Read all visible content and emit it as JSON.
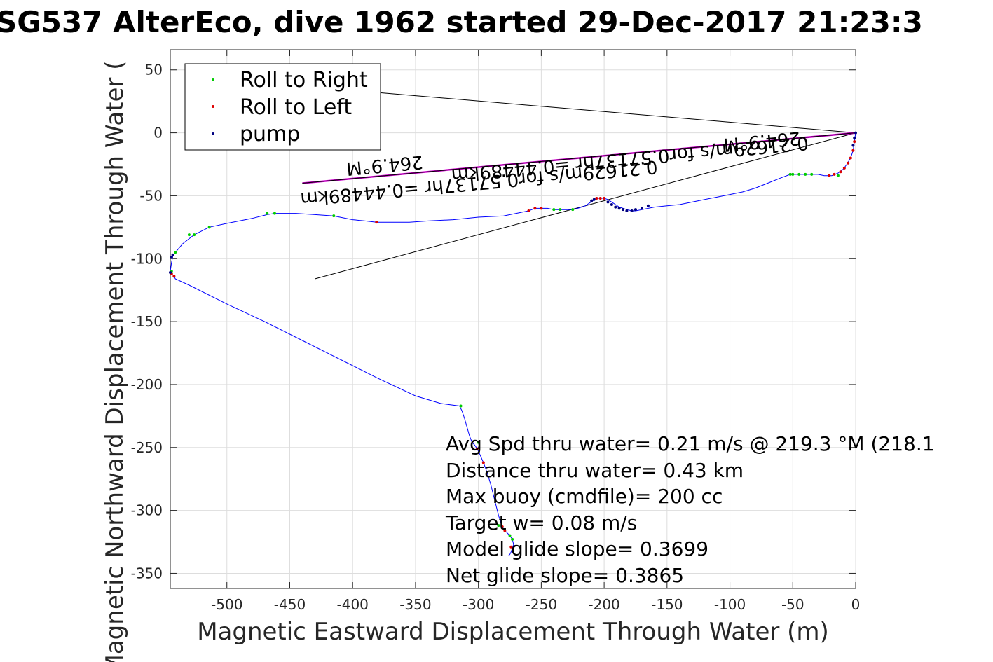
{
  "chart_data": {
    "type": "line",
    "title": "SG537 AlterEco, dive 1962 started 29-Dec-2017 21:23:3",
    "xlabel": "Magnetic Eastward Displacement Through Water (m)",
    "ylabel": "Magnetic Northward Displacement Through Water (",
    "xlim": [
      -545,
      0
    ],
    "ylim": [
      -362,
      66
    ],
    "xticks": [
      -500,
      -450,
      -400,
      -350,
      -300,
      -250,
      -200,
      -150,
      -100,
      -50,
      0
    ],
    "xtick_labels": [
      "-500",
      "-450",
      "-400",
      "-350",
      "-300",
      "-250",
      "-200",
      "-150",
      "-100",
      "-50",
      "0"
    ],
    "yticks": [
      50,
      0,
      -50,
      -100,
      -150,
      -200,
      -250,
      -300,
      -350
    ],
    "ytick_labels": [
      "50",
      "0",
      "-50",
      "-100",
      "-150",
      "-200",
      "-250",
      "-300",
      "-350"
    ],
    "grid": true,
    "legend": {
      "placement": "top-left",
      "entries": [
        {
          "label": "Roll to Right",
          "color": "#00cc00"
        },
        {
          "label": "Roll to Left",
          "color": "#dd0000"
        },
        {
          "label": "pump",
          "color": "#000080"
        }
      ]
    },
    "track": {
      "color": "#0000ff",
      "x": [
        0,
        -1,
        -2,
        -4,
        -7,
        -10,
        -14,
        -19,
        -22,
        -25,
        -30,
        -35,
        -40,
        -45,
        -52,
        -60,
        -70,
        -80,
        -90,
        -100,
        -110,
        -120,
        -130,
        -140,
        -150,
        -160,
        -165,
        -170,
        -175,
        -178,
        -182,
        -185,
        -188,
        -191,
        -194,
        -197,
        -200,
        -203,
        -206,
        -209,
        -212,
        -215,
        -218,
        -221,
        -225,
        -230,
        -235,
        -240,
        -245,
        -250,
        -255,
        -260,
        -270,
        -280,
        -300,
        -320,
        -340,
        -355,
        -365,
        -375,
        -381,
        -390,
        -400,
        -415,
        -430,
        -445,
        -462,
        -468,
        -480,
        -500,
        -514,
        -520,
        -526,
        -535,
        -541,
        -543,
        -544,
        -545,
        -544,
        -543,
        -542,
        -541,
        -530,
        -500,
        -470,
        -440,
        -410,
        -380,
        -350,
        -330,
        -315,
        -313,
        -311,
        -309,
        -307,
        -305,
        -303,
        -301,
        -299,
        -296,
        -293,
        -290,
        -287,
        -284,
        -281,
        -279,
        -277,
        -275,
        -273,
        -272,
        -273,
        -274,
        -275,
        -276
      ],
      "y": [
        0,
        -7,
        -14,
        -20,
        -25,
        -29,
        -32,
        -34,
        -34,
        -34,
        -33,
        -33,
        -33,
        -33,
        -33,
        -36,
        -40,
        -44,
        -47,
        -49,
        -51,
        -53,
        -55,
        -57,
        -58,
        -59,
        -60,
        -61,
        -62,
        -62,
        -61,
        -60,
        -59,
        -57,
        -55,
        -53,
        -52,
        -52,
        -52,
        -54,
        -56,
        -58,
        -59,
        -60,
        -61,
        -61,
        -61,
        -61,
        -60,
        -60,
        -60,
        -62,
        -64,
        -66,
        -67,
        -69,
        -70,
        -71,
        -71,
        -71,
        -71,
        -70,
        -69,
        -66,
        -65,
        -64,
        -64,
        -65,
        -68,
        -72,
        -75,
        -78,
        -81,
        -88,
        -95,
        -98,
        -103,
        -110,
        -112,
        -113,
        -114,
        -116,
        -121,
        -136,
        -150,
        -165,
        -180,
        -195,
        -209,
        -215,
        -217,
        -221,
        -227,
        -234,
        -241,
        -246,
        -248,
        -251,
        -255,
        -262,
        -270,
        -280,
        -292,
        -304,
        -313,
        -316,
        -318,
        -320,
        -323,
        -327,
        -330,
        -333,
        -335,
        -336
      ]
    },
    "markers": {
      "roll_right": {
        "color": "#00cc00",
        "x": [
          -14,
          -35,
          -40,
          -45,
          -50,
          -52,
          -225,
          -235,
          -240,
          -415,
          -462,
          -468,
          -514,
          -526,
          -530,
          -541,
          -544,
          -314,
          -300,
          -284,
          -275,
          -273
        ],
        "y": [
          -34,
          -33,
          -33,
          -33,
          -33,
          -33,
          -61,
          -61,
          -61,
          -66,
          -64,
          -64,
          -75,
          -81,
          -81,
          -95,
          -110,
          -217,
          -246,
          -312,
          -320,
          -323
        ]
      },
      "roll_left": {
        "color": "#dd0000",
        "x": [
          -1,
          -2,
          -4,
          -6,
          -9,
          -12,
          -17,
          -21,
          -200,
          -203,
          -206,
          -250,
          -255,
          -260,
          -381,
          -542,
          -544,
          -301,
          -296,
          -281,
          -279,
          -274
        ],
        "y": [
          -7,
          -14,
          -20,
          -24,
          -28,
          -31,
          -33,
          -34,
          -52,
          -52,
          -52,
          -60,
          -60,
          -62,
          -71,
          -114,
          -112,
          -251,
          -262,
          -313,
          -316,
          -329
        ]
      },
      "pump": {
        "color": "#000080",
        "x": [
          0,
          -1,
          -2,
          -165,
          -170,
          -175,
          -178,
          -182,
          -185,
          -188,
          -191,
          -194,
          -197,
          -208,
          -210,
          -543,
          -544,
          -545
        ],
        "y": [
          0,
          -4,
          -10,
          -58,
          -60,
          -61,
          -62,
          -62,
          -61,
          -60,
          -59,
          -57,
          -55,
          -53,
          -54,
          -97,
          -99,
          -111
        ]
      }
    },
    "reference_lines": [
      {
        "color": "#000000",
        "x": [
          -430,
          0
        ],
        "y": [
          -116,
          0
        ]
      },
      {
        "color": "#000000",
        "x": [
          -380,
          0
        ],
        "y": [
          32,
          0
        ]
      },
      {
        "color": "#cc00cc",
        "x": [
          -440,
          0
        ],
        "y": [
          -40,
          0
        ]
      },
      {
        "color": "#000000",
        "x": [
          -440,
          0
        ],
        "y": [
          -40,
          0
        ]
      }
    ],
    "flipped_labels": [
      {
        "text": "264.9°M",
        "x": -375,
        "y": -21
      },
      {
        "text": "0.21629m/s for0.57137hr =0.44489km",
        "x": -300,
        "y": -35
      },
      {
        "text": "264.9°M",
        "x": -75,
        "y": -2
      },
      {
        "text": "0.21629m/s for0.57137hr =0.44489km",
        "x": -180,
        "y": -16
      }
    ],
    "annotations": [
      "Avg Spd thru water=  0.21 m/s @ 219.3 °M (218.1",
      "Distance thru water=  0.43 km",
      "Max buoy (cmdfile)= 200 cc",
      "Target w= 0.08 m/s",
      "Model glide slope= 0.3699",
      "Net glide slope= 0.3865"
    ]
  }
}
